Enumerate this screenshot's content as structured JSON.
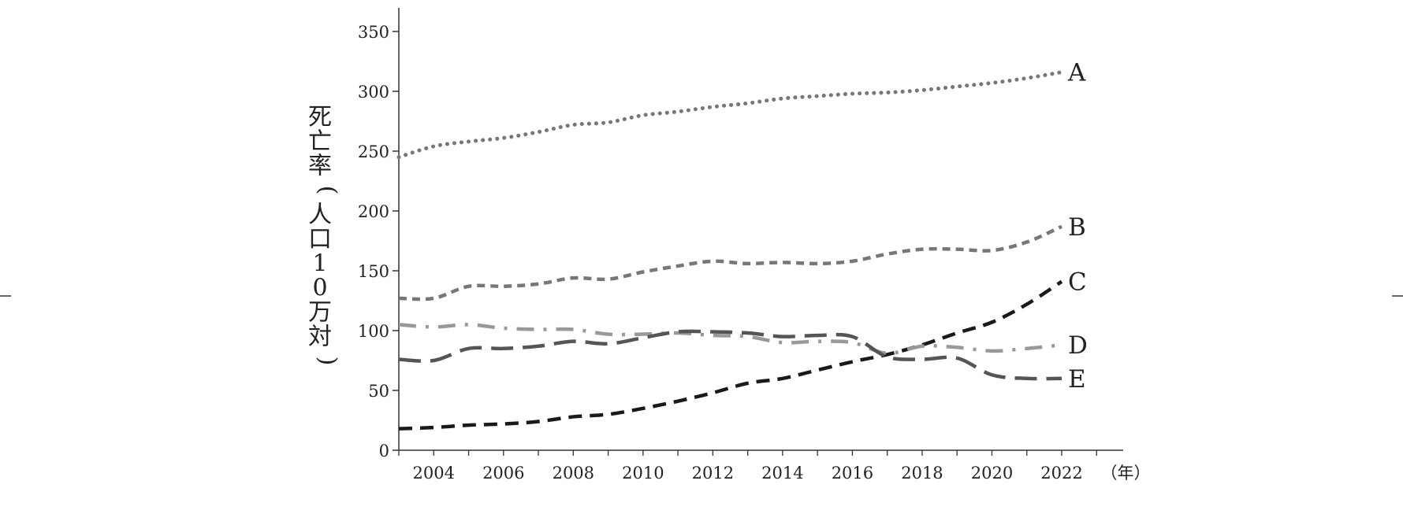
{
  "chart_data": {
    "type": "line",
    "ylabel": "死亡率（人口10万対）",
    "xunit": "（年）",
    "ylim": [
      0,
      350
    ],
    "xlim": [
      2003,
      2023
    ],
    "xticks": [
      2004,
      2006,
      2008,
      2010,
      2012,
      2014,
      2016,
      2018,
      2020,
      2022
    ],
    "yticks": [
      0,
      50,
      100,
      150,
      200,
      250,
      300,
      350
    ],
    "x": [
      2003,
      2004,
      2005,
      2006,
      2007,
      2008,
      2009,
      2010,
      2011,
      2012,
      2013,
      2014,
      2015,
      2016,
      2017,
      2018,
      2019,
      2020,
      2021,
      2022
    ],
    "series": [
      {
        "name": "A",
        "color": "#777777",
        "style": "dotted",
        "values": [
          245,
          254,
          258,
          261,
          266,
          272,
          274,
          280,
          283,
          287,
          290,
          294,
          296,
          298,
          299,
          301,
          304,
          307,
          311,
          316
        ]
      },
      {
        "name": "B",
        "color": "#777777",
        "style": "short-dash",
        "values": [
          127,
          127,
          137,
          137,
          139,
          144,
          143,
          149,
          154,
          158,
          156,
          157,
          156,
          158,
          164,
          168,
          168,
          167,
          174,
          187
        ]
      },
      {
        "name": "C",
        "color": "#1a1a1a",
        "style": "dash",
        "values": [
          18,
          19,
          21,
          22,
          24,
          28,
          30,
          35,
          41,
          48,
          56,
          60,
          67,
          74,
          80,
          88,
          98,
          107,
          122,
          141
        ]
      },
      {
        "name": "D",
        "color": "#999999",
        "style": "dash-dot",
        "values": [
          105,
          103,
          105,
          102,
          101,
          101,
          97,
          97,
          98,
          96,
          95,
          90,
          91,
          90,
          81,
          87,
          86,
          83,
          85,
          88
        ]
      },
      {
        "name": "E",
        "color": "#555555",
        "style": "long-dash",
        "values": [
          76,
          75,
          85,
          85,
          87,
          91,
          89,
          94,
          99,
          99,
          98,
          95,
          96,
          95,
          78,
          76,
          77,
          63,
          60,
          60
        ]
      }
    ]
  }
}
